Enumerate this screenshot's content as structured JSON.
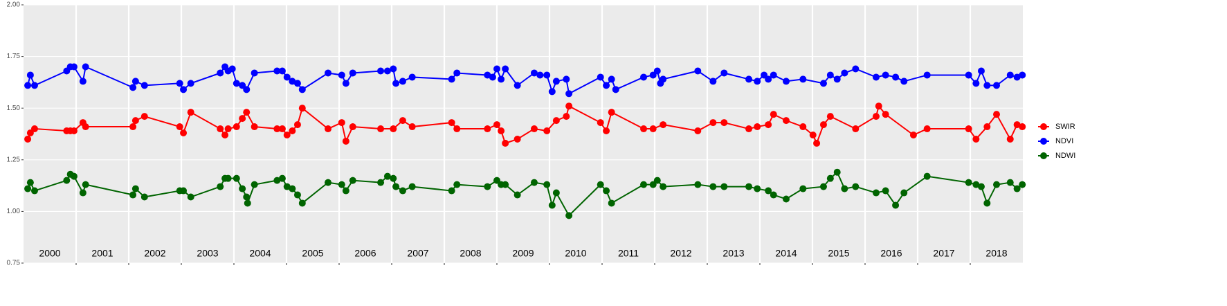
{
  "chart_data": {
    "type": "line",
    "xlim": [
      2000,
      2019
    ],
    "xticks": [
      2001,
      2002,
      2003,
      2004,
      2005,
      2006,
      2007,
      2008,
      2009,
      2010,
      2011,
      2012,
      2013,
      2014,
      2015,
      2016,
      2017,
      2018
    ],
    "ylim": [
      0.75,
      2.0
    ],
    "yticks": [
      {
        "value": 0.75,
        "label": "0.75"
      },
      {
        "value": 1,
        "label": "1.00"
      },
      {
        "value": 1.25,
        "label": "1.25"
      },
      {
        "value": 1.5,
        "label": "1.50"
      },
      {
        "value": 1.75,
        "label": "1.75"
      },
      {
        "value": 2,
        "label": "2.00"
      }
    ],
    "grid": true,
    "legend": "right",
    "annotations": [
      {
        "text": "2000",
        "x": 2000.5
      },
      {
        "text": "2001",
        "x": 2001.5
      },
      {
        "text": "2002",
        "x": 2002.5
      },
      {
        "text": "2003",
        "x": 2003.5
      },
      {
        "text": "2004",
        "x": 2004.5
      },
      {
        "text": "2005",
        "x": 2005.5
      },
      {
        "text": "2006",
        "x": 2006.5
      },
      {
        "text": "2007",
        "x": 2007.5
      },
      {
        "text": "2008",
        "x": 2008.5
      },
      {
        "text": "2009",
        "x": 2009.5
      },
      {
        "text": "2010",
        "x": 2010.5
      },
      {
        "text": "2011",
        "x": 2011.5
      },
      {
        "text": "2012",
        "x": 2012.5
      },
      {
        "text": "2013",
        "x": 2013.5
      },
      {
        "text": "2014",
        "x": 2014.5
      },
      {
        "text": "2015",
        "x": 2015.5
      },
      {
        "text": "2016",
        "x": 2016.5
      },
      {
        "text": "2017",
        "x": 2017.5
      },
      {
        "text": "2018",
        "x": 2018.5
      }
    ],
    "series": [
      {
        "name": "SWIR",
        "color": "#ff0000",
        "x": [
          2000.08,
          2000.13,
          2000.21,
          2000.82,
          2000.89,
          2000.96,
          2001.13,
          2001.18,
          2002.08,
          2002.13,
          2002.3,
          2002.97,
          2003.04,
          2003.18,
          2003.74,
          2003.83,
          2003.89,
          2004.05,
          2004.16,
          2004.24,
          2004.39,
          2004.82,
          2004.92,
          2005.01,
          2005.11,
          2005.21,
          2005.3,
          2005.79,
          2006.05,
          2006.13,
          2006.26,
          2006.79,
          2007.03,
          2007.21,
          2007.39,
          2008.14,
          2008.24,
          2008.82,
          2009.0,
          2009.08,
          2009.16,
          2009.39,
          2009.71,
          2009.95,
          2010.13,
          2010.32,
          2010.37,
          2010.97,
          2011.08,
          2011.18,
          2011.79,
          2011.97,
          2012.16,
          2012.82,
          2013.11,
          2013.32,
          2013.79,
          2013.95,
          2014.16,
          2014.26,
          2014.5,
          2014.82,
          2015.01,
          2015.08,
          2015.21,
          2015.34,
          2015.82,
          2016.21,
          2016.26,
          2016.39,
          2016.92,
          2017.18,
          2017.97,
          2018.11,
          2018.32,
          2018.5,
          2018.76,
          2018.89,
          2018.99
        ],
        "values": [
          1.35,
          1.38,
          1.4,
          1.39,
          1.39,
          1.39,
          1.43,
          1.41,
          1.41,
          1.44,
          1.46,
          1.41,
          1.38,
          1.48,
          1.4,
          1.37,
          1.4,
          1.41,
          1.45,
          1.48,
          1.41,
          1.4,
          1.4,
          1.37,
          1.39,
          1.42,
          1.5,
          1.4,
          1.43,
          1.34,
          1.41,
          1.4,
          1.4,
          1.44,
          1.41,
          1.43,
          1.4,
          1.4,
          1.42,
          1.39,
          1.33,
          1.35,
          1.4,
          1.39,
          1.44,
          1.46,
          1.51,
          1.43,
          1.39,
          1.48,
          1.4,
          1.4,
          1.42,
          1.39,
          1.43,
          1.43,
          1.4,
          1.41,
          1.42,
          1.47,
          1.44,
          1.41,
          1.37,
          1.33,
          1.42,
          1.46,
          1.4,
          1.46,
          1.51,
          1.47,
          1.37,
          1.4,
          1.4,
          1.35,
          1.41,
          1.47,
          1.35,
          1.42,
          1.41
        ]
      },
      {
        "name": "NDVI",
        "color": "#0000ff",
        "x": [
          2000.08,
          2000.13,
          2000.21,
          2000.82,
          2000.89,
          2000.96,
          2001.13,
          2001.18,
          2002.08,
          2002.13,
          2002.3,
          2002.97,
          2003.04,
          2003.18,
          2003.74,
          2003.83,
          2003.89,
          2003.97,
          2004.05,
          2004.16,
          2004.24,
          2004.39,
          2004.82,
          2004.92,
          2005.01,
          2005.11,
          2005.21,
          2005.3,
          2005.79,
          2006.05,
          2006.13,
          2006.26,
          2006.79,
          2006.92,
          2007.03,
          2007.08,
          2007.21,
          2007.39,
          2008.14,
          2008.24,
          2008.82,
          2008.92,
          2009.0,
          2009.08,
          2009.16,
          2009.39,
          2009.71,
          2009.82,
          2009.95,
          2010.05,
          2010.13,
          2010.32,
          2010.37,
          2010.97,
          2011.08,
          2011.18,
          2011.26,
          2011.79,
          2011.97,
          2012.05,
          2012.11,
          2012.16,
          2012.82,
          2013.11,
          2013.32,
          2013.79,
          2013.95,
          2014.08,
          2014.16,
          2014.26,
          2014.5,
          2014.82,
          2015.21,
          2015.34,
          2015.47,
          2015.61,
          2015.82,
          2016.21,
          2016.39,
          2016.58,
          2016.74,
          2017.18,
          2017.97,
          2018.11,
          2018.21,
          2018.32,
          2018.5,
          2018.76,
          2018.89,
          2018.99
        ],
        "values": [
          1.61,
          1.66,
          1.61,
          1.68,
          1.7,
          1.7,
          1.63,
          1.7,
          1.6,
          1.63,
          1.61,
          1.62,
          1.59,
          1.62,
          1.67,
          1.7,
          1.68,
          1.69,
          1.62,
          1.61,
          1.59,
          1.67,
          1.68,
          1.68,
          1.65,
          1.63,
          1.62,
          1.59,
          1.67,
          1.66,
          1.62,
          1.67,
          1.68,
          1.68,
          1.69,
          1.62,
          1.63,
          1.65,
          1.64,
          1.67,
          1.66,
          1.65,
          1.69,
          1.64,
          1.69,
          1.61,
          1.67,
          1.66,
          1.66,
          1.58,
          1.63,
          1.64,
          1.57,
          1.65,
          1.61,
          1.64,
          1.59,
          1.65,
          1.66,
          1.68,
          1.62,
          1.64,
          1.68,
          1.63,
          1.67,
          1.64,
          1.63,
          1.66,
          1.64,
          1.66,
          1.63,
          1.64,
          1.62,
          1.66,
          1.64,
          1.67,
          1.69,
          1.65,
          1.66,
          1.65,
          1.63,
          1.66,
          1.66,
          1.62,
          1.68,
          1.61,
          1.61,
          1.66,
          1.65,
          1.66
        ]
      },
      {
        "name": "NDWI",
        "color": "#006400",
        "x": [
          2000.08,
          2000.13,
          2000.21,
          2000.82,
          2000.89,
          2000.96,
          2001.13,
          2001.18,
          2002.08,
          2002.13,
          2002.3,
          2002.97,
          2003.04,
          2003.18,
          2003.74,
          2003.83,
          2003.89,
          2004.05,
          2004.16,
          2004.24,
          2004.26,
          2004.39,
          2004.82,
          2004.92,
          2005.01,
          2005.11,
          2005.21,
          2005.3,
          2005.79,
          2006.05,
          2006.13,
          2006.26,
          2006.79,
          2006.92,
          2007.03,
          2007.08,
          2007.21,
          2007.39,
          2008.14,
          2008.24,
          2008.82,
          2009.0,
          2009.08,
          2009.16,
          2009.39,
          2009.71,
          2009.95,
          2010.05,
          2010.13,
          2010.37,
          2010.97,
          2011.08,
          2011.18,
          2011.79,
          2011.97,
          2012.05,
          2012.16,
          2012.82,
          2013.11,
          2013.32,
          2013.79,
          2013.95,
          2014.16,
          2014.26,
          2014.5,
          2014.82,
          2015.21,
          2015.34,
          2015.47,
          2015.61,
          2015.82,
          2016.21,
          2016.39,
          2016.58,
          2016.74,
          2017.18,
          2017.97,
          2018.11,
          2018.21,
          2018.32,
          2018.5,
          2018.76,
          2018.89,
          2018.99
        ],
        "values": [
          1.11,
          1.14,
          1.1,
          1.15,
          1.18,
          1.17,
          1.09,
          1.13,
          1.08,
          1.11,
          1.07,
          1.1,
          1.1,
          1.07,
          1.12,
          1.16,
          1.16,
          1.16,
          1.11,
          1.07,
          1.04,
          1.13,
          1.15,
          1.16,
          1.12,
          1.11,
          1.08,
          1.04,
          1.14,
          1.13,
          1.1,
          1.15,
          1.14,
          1.17,
          1.16,
          1.12,
          1.1,
          1.12,
          1.1,
          1.13,
          1.12,
          1.15,
          1.13,
          1.13,
          1.08,
          1.14,
          1.13,
          1.03,
          1.09,
          0.98,
          1.13,
          1.1,
          1.04,
          1.13,
          1.13,
          1.15,
          1.12,
          1.13,
          1.12,
          1.12,
          1.12,
          1.11,
          1.1,
          1.08,
          1.06,
          1.11,
          1.12,
          1.16,
          1.19,
          1.11,
          1.12,
          1.09,
          1.1,
          1.03,
          1.09,
          1.17,
          1.14,
          1.13,
          1.12,
          1.04,
          1.13,
          1.14,
          1.11,
          1.13
        ]
      }
    ]
  }
}
